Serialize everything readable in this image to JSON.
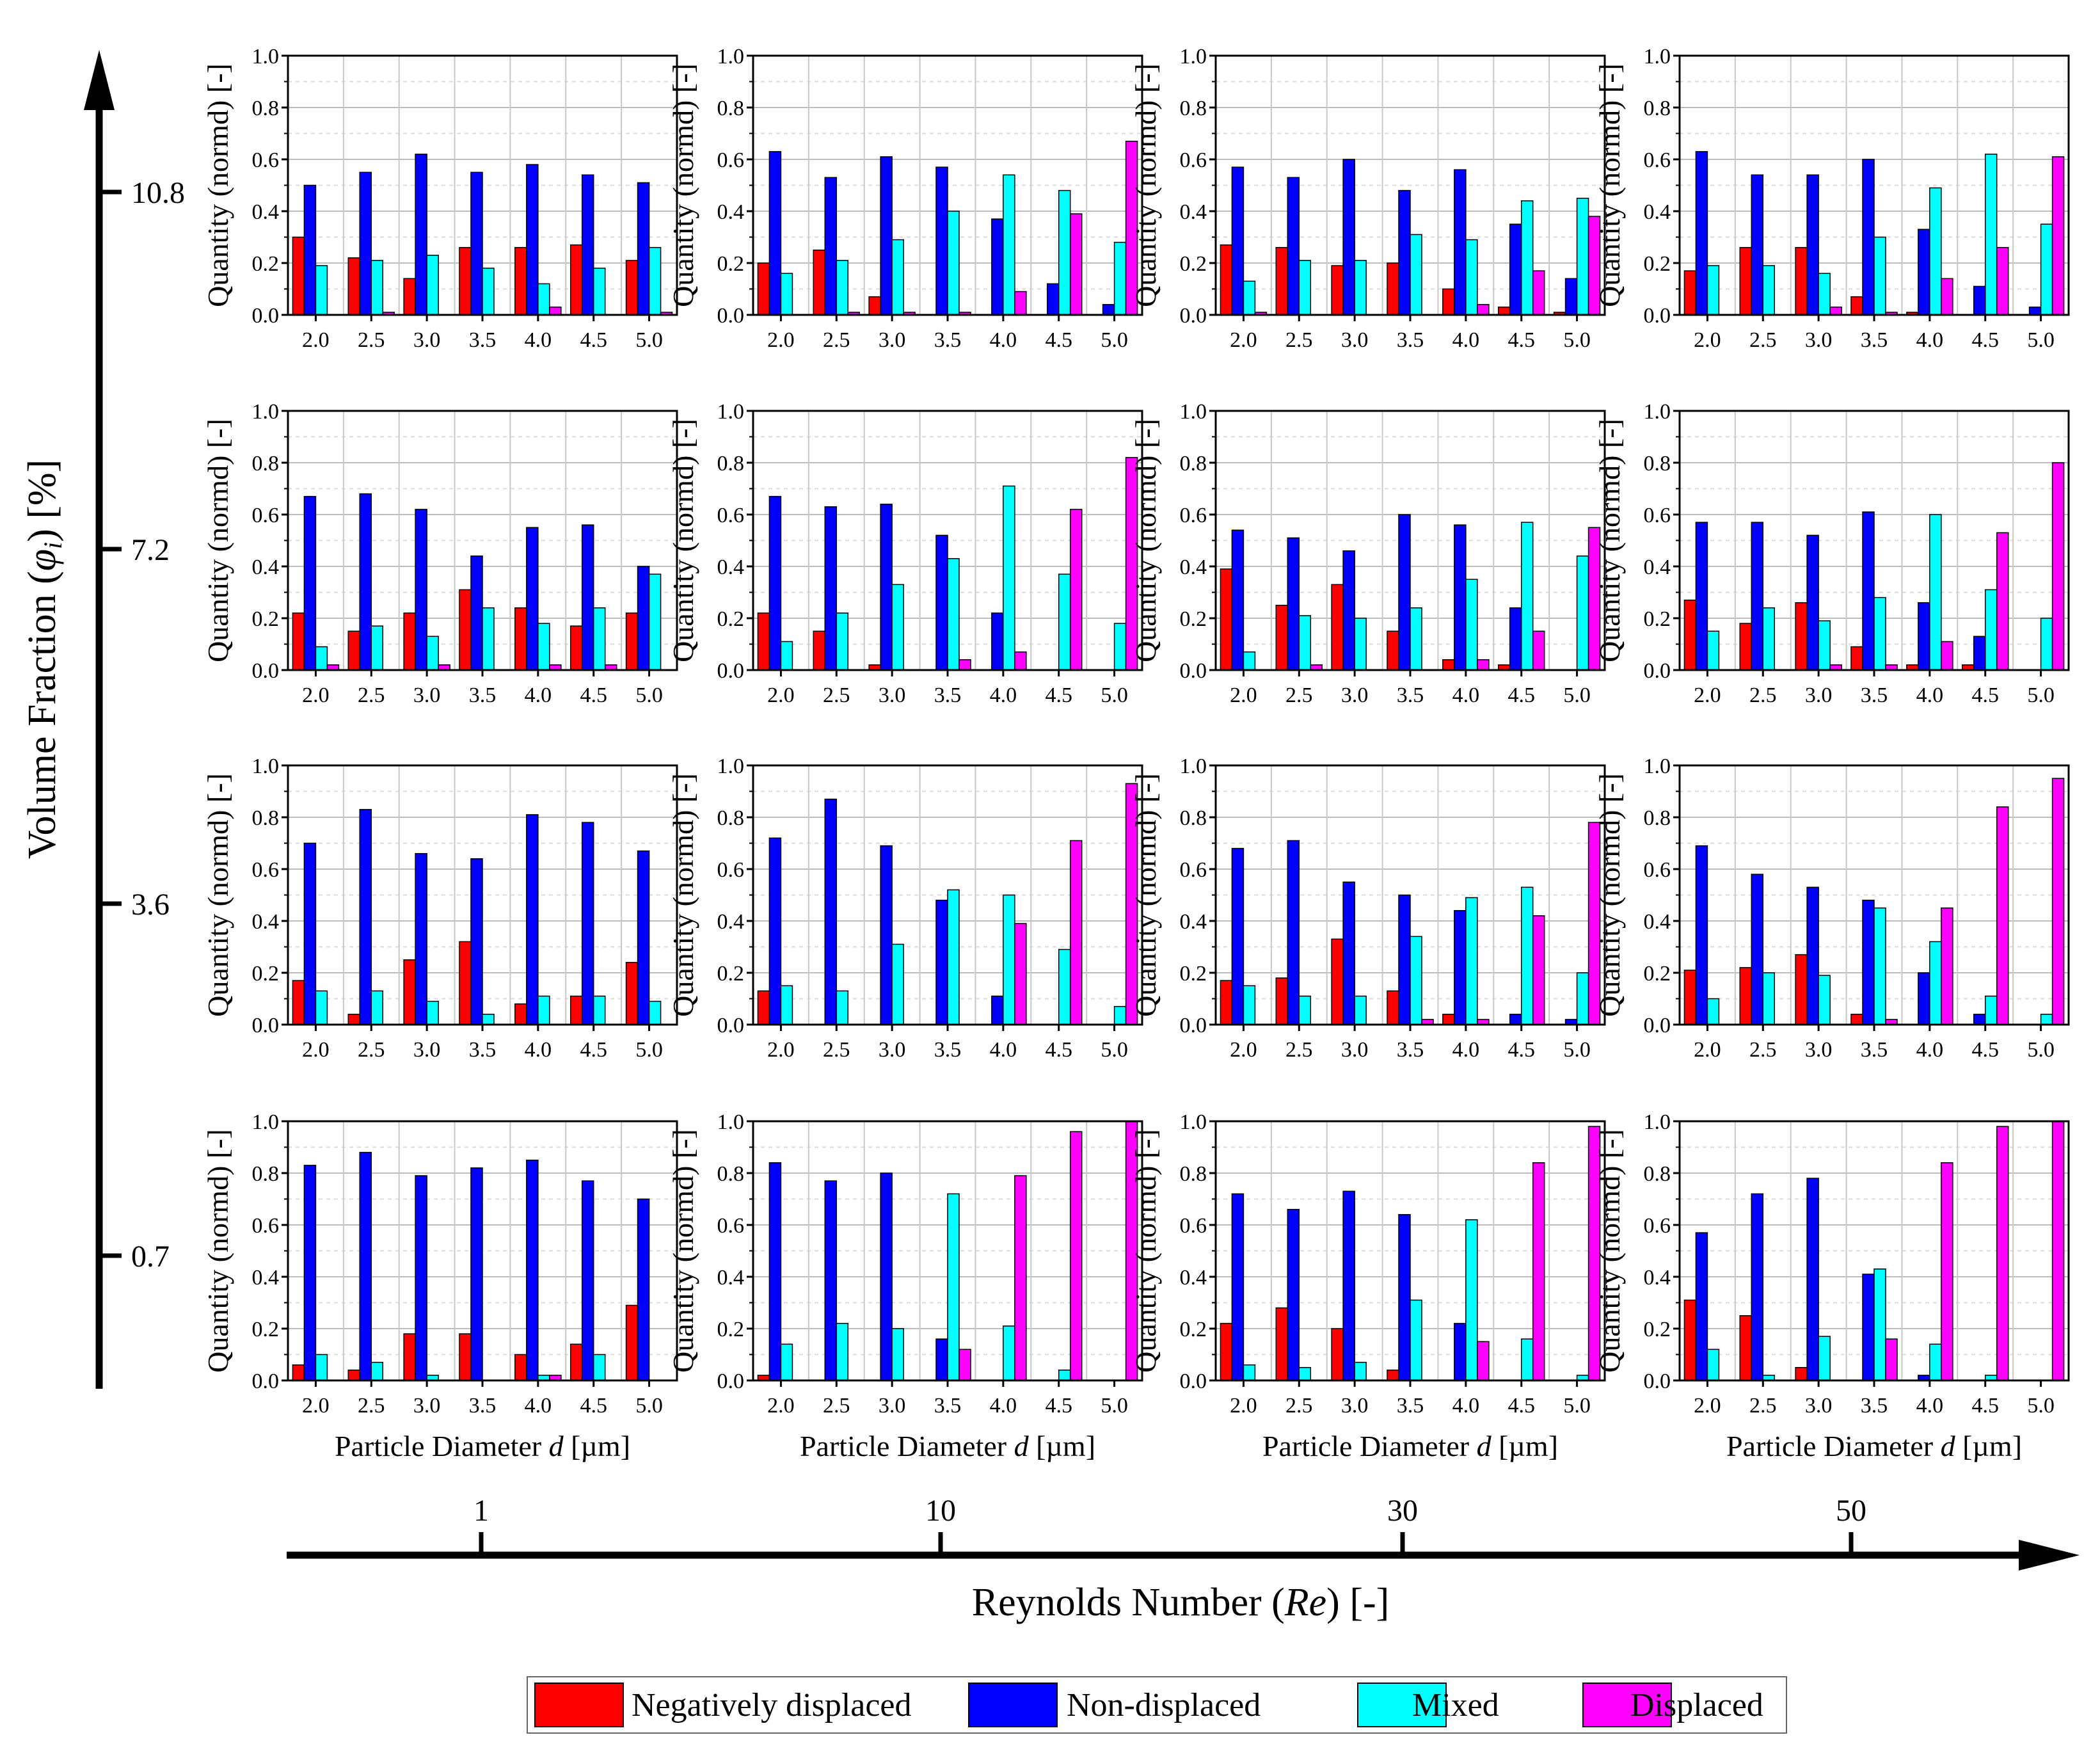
{
  "chart_data": {
    "type": "bar",
    "categories": [
      "2.0",
      "2.5",
      "3.0",
      "3.5",
      "4.0",
      "4.5",
      "5.0"
    ],
    "ylim": [
      0,
      1.0
    ],
    "yticks": [
      "0.0",
      "0.2",
      "0.4",
      "0.6",
      "0.8",
      "1.0"
    ],
    "ylabel": "Quantity (normd) [-]",
    "xlabel": "Particle Diameter d [µm]",
    "xlabel_parts": {
      "pre": "Particle Diameter ",
      "var": "d",
      "post": " [µm]"
    },
    "grid": true,
    "series_names": [
      "Negatively displaced",
      "Non-displaced",
      "Mixed",
      "Displaced"
    ],
    "series_colors": [
      "#ff0000",
      "#0000ff",
      "#00ffff",
      "#ff00ff"
    ],
    "outer_x_axis": {
      "title": "Reynolds Number (Re) [-]",
      "title_parts": {
        "pre": "Reynolds Number (",
        "var": "Re",
        "post": ") [-]"
      },
      "ticks": [
        "1",
        "10",
        "30",
        "50"
      ]
    },
    "outer_y_axis": {
      "title": "Volume Fraction (φi) [%]",
      "title_parts": {
        "pre": "Volume Fraction (",
        "var": "φ",
        "sub": "i",
        "post": ") [%]"
      },
      "ticks": [
        "10.8",
        "7.2",
        "3.6",
        "0.7"
      ]
    },
    "panels": [
      {
        "volume_fraction": "10.8",
        "reynolds": "1",
        "series": [
          {
            "name": "Negatively displaced",
            "values": [
              0.3,
              0.22,
              0.14,
              0.26,
              0.26,
              0.27,
              0.21
            ]
          },
          {
            "name": "Non-displaced",
            "values": [
              0.5,
              0.55,
              0.62,
              0.55,
              0.58,
              0.54,
              0.51
            ]
          },
          {
            "name": "Mixed",
            "values": [
              0.19,
              0.21,
              0.23,
              0.18,
              0.12,
              0.18,
              0.26
            ]
          },
          {
            "name": "Displaced",
            "values": [
              0,
              0.01,
              0,
              0,
              0.03,
              0,
              0.01
            ]
          }
        ]
      },
      {
        "volume_fraction": "10.8",
        "reynolds": "10",
        "series": [
          {
            "name": "Negatively displaced",
            "values": [
              0.2,
              0.25,
              0.07,
              0,
              0,
              0,
              0
            ]
          },
          {
            "name": "Non-displaced",
            "values": [
              0.63,
              0.53,
              0.61,
              0.57,
              0.37,
              0.12,
              0.04
            ]
          },
          {
            "name": "Mixed",
            "values": [
              0.16,
              0.21,
              0.29,
              0.4,
              0.54,
              0.48,
              0.28
            ]
          },
          {
            "name": "Displaced",
            "values": [
              0,
              0.01,
              0.01,
              0.01,
              0.09,
              0.39,
              0.67
            ]
          }
        ]
      },
      {
        "volume_fraction": "10.8",
        "reynolds": "30",
        "series": [
          {
            "name": "Negatively displaced",
            "values": [
              0.27,
              0.26,
              0.19,
              0.2,
              0.1,
              0.03,
              0.01
            ]
          },
          {
            "name": "Non-displaced",
            "values": [
              0.57,
              0.53,
              0.6,
              0.48,
              0.56,
              0.35,
              0.14
            ]
          },
          {
            "name": "Mixed",
            "values": [
              0.13,
              0.21,
              0.21,
              0.31,
              0.29,
              0.44,
              0.45
            ]
          },
          {
            "name": "Displaced",
            "values": [
              0.01,
              0,
              0,
              0,
              0.04,
              0.17,
              0.38
            ]
          }
        ]
      },
      {
        "volume_fraction": "10.8",
        "reynolds": "50",
        "series": [
          {
            "name": "Negatively displaced",
            "values": [
              0.17,
              0.26,
              0.26,
              0.07,
              0.01,
              0,
              0
            ]
          },
          {
            "name": "Non-displaced",
            "values": [
              0.63,
              0.54,
              0.54,
              0.6,
              0.33,
              0.11,
              0.03
            ]
          },
          {
            "name": "Mixed",
            "values": [
              0.19,
              0.19,
              0.16,
              0.3,
              0.49,
              0.62,
              0.35
            ]
          },
          {
            "name": "Displaced",
            "values": [
              0,
              0,
              0.03,
              0.01,
              0.14,
              0.26,
              0.61
            ]
          }
        ]
      },
      {
        "volume_fraction": "7.2",
        "reynolds": "1",
        "series": [
          {
            "name": "Negatively displaced",
            "values": [
              0.22,
              0.15,
              0.22,
              0.31,
              0.24,
              0.17,
              0.22
            ]
          },
          {
            "name": "Non-displaced",
            "values": [
              0.67,
              0.68,
              0.62,
              0.44,
              0.55,
              0.56,
              0.4
            ]
          },
          {
            "name": "Mixed",
            "values": [
              0.09,
              0.17,
              0.13,
              0.24,
              0.18,
              0.24,
              0.37
            ]
          },
          {
            "name": "Displaced",
            "values": [
              0.02,
              0,
              0.02,
              0,
              0.02,
              0.02,
              0
            ]
          }
        ]
      },
      {
        "volume_fraction": "7.2",
        "reynolds": "10",
        "series": [
          {
            "name": "Negatively displaced",
            "values": [
              0.22,
              0.15,
              0.02,
              0,
              0,
              0,
              0
            ]
          },
          {
            "name": "Non-displaced",
            "values": [
              0.67,
              0.63,
              0.64,
              0.52,
              0.22,
              0,
              0
            ]
          },
          {
            "name": "Mixed",
            "values": [
              0.11,
              0.22,
              0.33,
              0.43,
              0.71,
              0.37,
              0.18
            ]
          },
          {
            "name": "Displaced",
            "values": [
              0,
              0,
              0,
              0.04,
              0.07,
              0.62,
              0.82
            ]
          }
        ]
      },
      {
        "volume_fraction": "7.2",
        "reynolds": "30",
        "series": [
          {
            "name": "Negatively displaced",
            "values": [
              0.39,
              0.25,
              0.33,
              0.15,
              0.04,
              0.02,
              0
            ]
          },
          {
            "name": "Non-displaced",
            "values": [
              0.54,
              0.51,
              0.46,
              0.6,
              0.56,
              0.24,
              0
            ]
          },
          {
            "name": "Mixed",
            "values": [
              0.07,
              0.21,
              0.2,
              0.24,
              0.35,
              0.57,
              0.44
            ]
          },
          {
            "name": "Displaced",
            "values": [
              0,
              0.02,
              0,
              0,
              0.04,
              0.15,
              0.55
            ]
          }
        ]
      },
      {
        "volume_fraction": "7.2",
        "reynolds": "50",
        "series": [
          {
            "name": "Negatively displaced",
            "values": [
              0.27,
              0.18,
              0.26,
              0.09,
              0.02,
              0.02,
              0
            ]
          },
          {
            "name": "Non-displaced",
            "values": [
              0.57,
              0.57,
              0.52,
              0.61,
              0.26,
              0.13,
              0
            ]
          },
          {
            "name": "Mixed",
            "values": [
              0.15,
              0.24,
              0.19,
              0.28,
              0.6,
              0.31,
              0.2
            ]
          },
          {
            "name": "Displaced",
            "values": [
              0,
              0,
              0.02,
              0.02,
              0.11,
              0.53,
              0.8
            ]
          }
        ]
      },
      {
        "volume_fraction": "3.6",
        "reynolds": "1",
        "series": [
          {
            "name": "Negatively displaced",
            "values": [
              0.17,
              0.04,
              0.25,
              0.32,
              0.08,
              0.11,
              0.24
            ]
          },
          {
            "name": "Non-displaced",
            "values": [
              0.7,
              0.83,
              0.66,
              0.64,
              0.81,
              0.78,
              0.67
            ]
          },
          {
            "name": "Mixed",
            "values": [
              0.13,
              0.13,
              0.09,
              0.04,
              0.11,
              0.11,
              0.09
            ]
          },
          {
            "name": "Displaced",
            "values": [
              0,
              0,
              0,
              0,
              0,
              0,
              0
            ]
          }
        ]
      },
      {
        "volume_fraction": "3.6",
        "reynolds": "10",
        "series": [
          {
            "name": "Negatively displaced",
            "values": [
              0.13,
              0,
              0,
              0,
              0,
              0,
              0
            ]
          },
          {
            "name": "Non-displaced",
            "values": [
              0.72,
              0.87,
              0.69,
              0.48,
              0.11,
              0,
              0
            ]
          },
          {
            "name": "Mixed",
            "values": [
              0.15,
              0.13,
              0.31,
              0.52,
              0.5,
              0.29,
              0.07
            ]
          },
          {
            "name": "Displaced",
            "values": [
              0,
              0,
              0,
              0,
              0.39,
              0.71,
              0.93
            ]
          }
        ]
      },
      {
        "volume_fraction": "3.6",
        "reynolds": "30",
        "series": [
          {
            "name": "Negatively displaced",
            "values": [
              0.17,
              0.18,
              0.33,
              0.13,
              0.04,
              0,
              0
            ]
          },
          {
            "name": "Non-displaced",
            "values": [
              0.68,
              0.71,
              0.55,
              0.5,
              0.44,
              0.04,
              0.02
            ]
          },
          {
            "name": "Mixed",
            "values": [
              0.15,
              0.11,
              0.11,
              0.34,
              0.49,
              0.53,
              0.2
            ]
          },
          {
            "name": "Displaced",
            "values": [
              0,
              0,
              0,
              0.02,
              0.02,
              0.42,
              0.78
            ]
          }
        ]
      },
      {
        "volume_fraction": "3.6",
        "reynolds": "50",
        "series": [
          {
            "name": "Negatively displaced",
            "values": [
              0.21,
              0.22,
              0.27,
              0.04,
              0,
              0,
              0
            ]
          },
          {
            "name": "Non-displaced",
            "values": [
              0.69,
              0.58,
              0.53,
              0.48,
              0.2,
              0.04,
              0
            ]
          },
          {
            "name": "Mixed",
            "values": [
              0.1,
              0.2,
              0.19,
              0.45,
              0.32,
              0.11,
              0.04
            ]
          },
          {
            "name": "Displaced",
            "values": [
              0,
              0,
              0,
              0.02,
              0.45,
              0.84,
              0.95
            ]
          }
        ]
      },
      {
        "volume_fraction": "0.7",
        "reynolds": "1",
        "series": [
          {
            "name": "Negatively displaced",
            "values": [
              0.06,
              0.04,
              0.18,
              0.18,
              0.1,
              0.14,
              0.29
            ]
          },
          {
            "name": "Non-displaced",
            "values": [
              0.83,
              0.88,
              0.79,
              0.82,
              0.85,
              0.77,
              0.7
            ]
          },
          {
            "name": "Mixed",
            "values": [
              0.1,
              0.07,
              0.02,
              0,
              0.02,
              0.1,
              0
            ]
          },
          {
            "name": "Displaced",
            "values": [
              0,
              0,
              0,
              0,
              0.02,
              0,
              0
            ]
          }
        ]
      },
      {
        "volume_fraction": "0.7",
        "reynolds": "10",
        "series": [
          {
            "name": "Negatively displaced",
            "values": [
              0.02,
              0,
              0,
              0,
              0,
              0,
              0
            ]
          },
          {
            "name": "Non-displaced",
            "values": [
              0.84,
              0.77,
              0.8,
              0.16,
              0,
              0,
              0
            ]
          },
          {
            "name": "Mixed",
            "values": [
              0.14,
              0.22,
              0.2,
              0.72,
              0.21,
              0.04,
              0
            ]
          },
          {
            "name": "Displaced",
            "values": [
              0,
              0,
              0,
              0.12,
              0.79,
              0.96,
              1.0
            ]
          }
        ]
      },
      {
        "volume_fraction": "0.7",
        "reynolds": "30",
        "series": [
          {
            "name": "Negatively displaced",
            "values": [
              0.22,
              0.28,
              0.2,
              0.04,
              0,
              0,
              0
            ]
          },
          {
            "name": "Non-displaced",
            "values": [
              0.72,
              0.66,
              0.73,
              0.64,
              0.22,
              0,
              0
            ]
          },
          {
            "name": "Mixed",
            "values": [
              0.06,
              0.05,
              0.07,
              0.31,
              0.62,
              0.16,
              0.02
            ]
          },
          {
            "name": "Displaced",
            "values": [
              0,
              0,
              0,
              0,
              0.15,
              0.84,
              0.98
            ]
          }
        ]
      },
      {
        "volume_fraction": "0.7",
        "reynolds": "50",
        "series": [
          {
            "name": "Negatively displaced",
            "values": [
              0.31,
              0.25,
              0.05,
              0,
              0,
              0,
              0
            ]
          },
          {
            "name": "Non-displaced",
            "values": [
              0.57,
              0.72,
              0.78,
              0.41,
              0.02,
              0,
              0
            ]
          },
          {
            "name": "Mixed",
            "values": [
              0.12,
              0.02,
              0.17,
              0.43,
              0.14,
              0.02,
              0
            ]
          },
          {
            "name": "Displaced",
            "values": [
              0,
              0,
              0,
              0.16,
              0.84,
              0.98,
              1.0
            ]
          }
        ]
      }
    ]
  }
}
